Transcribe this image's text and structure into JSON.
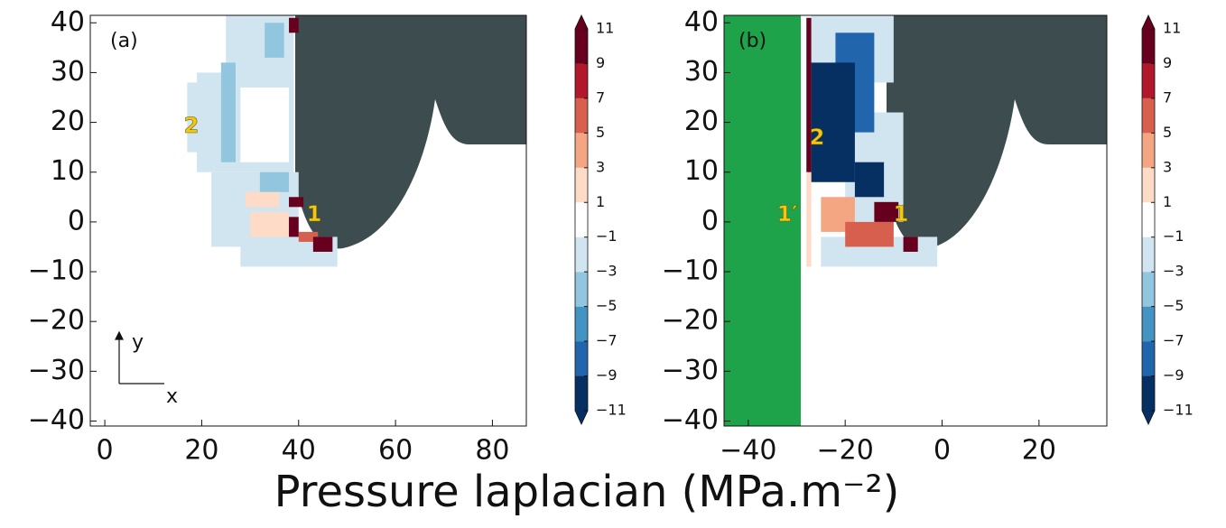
{
  "title": "Pressure laplacian (MPa.m⁻²)",
  "colorbar": {
    "ticks": [
      {
        "value": -11,
        "label": "−11"
      },
      {
        "value": -9,
        "label": "−9"
      },
      {
        "value": -7,
        "label": "−7"
      },
      {
        "value": -5,
        "label": "−5"
      },
      {
        "value": -3,
        "label": "−3"
      },
      {
        "value": -1,
        "label": "−1"
      },
      1,
      3,
      5,
      7,
      9,
      11
    ],
    "colors": [
      "#053061",
      "#2166ac",
      "#4393c3",
      "#92c5de",
      "#d1e5f0",
      "#ffffff",
      "#fddbc7",
      "#f4a582",
      "#d6604d",
      "#b2182b",
      "#67001f"
    ],
    "extend_colors": [
      "#053061",
      "#67001f"
    ]
  },
  "chart_data": [
    {
      "type": "heatmap",
      "label": "(a)",
      "xlim": [
        -3,
        87
      ],
      "ylim": [
        -41,
        41.5
      ],
      "xticks": [
        0,
        20,
        40,
        60,
        80
      ],
      "yticks": [
        {
          "value": -40,
          "label": "−40"
        },
        {
          "value": -30,
          "label": "−30"
        },
        {
          "value": -20,
          "label": "−20"
        },
        {
          "value": -10,
          "label": "−10"
        },
        0,
        10,
        20,
        30,
        40
      ],
      "annotations": [
        "2",
        "1"
      ],
      "axis_arrows": [
        "y",
        "x"
      ],
      "cells": [
        {
          "x0": 25,
          "x1": 39,
          "y0": 28,
          "y1": 42,
          "value": -2
        },
        {
          "x0": 19,
          "x1": 39,
          "y0": 10,
          "y1": 30,
          "value": -2
        },
        {
          "x0": 17,
          "x1": 22,
          "y0": 14,
          "y1": 28,
          "value": -2
        },
        {
          "x0": 22,
          "x1": 40,
          "y0": -5,
          "y1": 10,
          "value": -2
        },
        {
          "x0": 28,
          "x1": 48,
          "y0": -9,
          "y1": -3,
          "value": -2
        },
        {
          "x0": 28,
          "x1": 38,
          "y0": 12,
          "y1": 27,
          "value": 0
        },
        {
          "x0": 24,
          "x1": 27,
          "y0": 12,
          "y1": 32,
          "value": -4
        },
        {
          "x0": 33,
          "x1": 37,
          "y0": 33,
          "y1": 40,
          "value": -4
        },
        {
          "x0": 32,
          "x1": 38,
          "y0": 6,
          "y1": 10,
          "value": -4
        },
        {
          "x0": 29,
          "x1": 36,
          "y0": 3,
          "y1": 6,
          "value": 2
        },
        {
          "x0": 30,
          "x1": 38,
          "y0": -3,
          "y1": 2,
          "value": 2
        },
        {
          "x0": 40,
          "x1": 44,
          "y0": -4,
          "y1": -2,
          "value": 6
        },
        {
          "x0": 38,
          "x1": 40,
          "y0": 38,
          "y1": 41,
          "value": 10
        },
        {
          "x0": 38,
          "x1": 41,
          "y0": 3,
          "y1": 5,
          "value": 10
        },
        {
          "x0": 38,
          "x1": 40,
          "y0": -3,
          "y1": 1,
          "value": 10
        },
        {
          "x0": 43,
          "x1": 47,
          "y0": -6,
          "y1": -3,
          "value": 10
        }
      ]
    },
    {
      "type": "heatmap",
      "label": "(b)",
      "xlim": [
        -45,
        34
      ],
      "ylim": [
        -41,
        41.5
      ],
      "xticks": [
        {
          "value": -40,
          "label": "−40"
        },
        {
          "value": -20,
          "label": "−20"
        },
        0,
        20
      ],
      "yticks": [
        {
          "value": -40,
          "label": "−40"
        },
        {
          "value": -30,
          "label": "−30"
        },
        {
          "value": -20,
          "label": "−20"
        },
        {
          "value": -10,
          "label": "−10"
        },
        0,
        10,
        20,
        30,
        40
      ],
      "annotations": [
        "2",
        "1′",
        "1"
      ],
      "cells": [
        {
          "x0": -27,
          "x1": -10,
          "y0": 28,
          "y1": 42,
          "value": -2
        },
        {
          "x0": -20,
          "x1": -8,
          "y0": 0,
          "y1": 22,
          "value": -2
        },
        {
          "x0": -25,
          "x1": -1,
          "y0": -9,
          "y1": -3,
          "value": -2
        },
        {
          "x0": -22,
          "x1": -14,
          "y0": 18,
          "y1": 38,
          "value": -8
        },
        {
          "x0": -27,
          "x1": -18,
          "y0": 8,
          "y1": 32,
          "value": -10
        },
        {
          "x0": -18,
          "x1": -12,
          "y0": 5,
          "y1": 12,
          "value": -10
        },
        {
          "x0": -28,
          "x1": -27,
          "y0": -9,
          "y1": 10,
          "value": 2
        },
        {
          "x0": -25,
          "x1": -18,
          "y0": -2,
          "y1": 5,
          "value": 4
        },
        {
          "x0": -20,
          "x1": -10,
          "y0": -5,
          "y1": 0,
          "value": 6
        },
        {
          "x0": -28,
          "x1": -27,
          "y0": 10,
          "y1": 41,
          "value": 10
        },
        {
          "x0": -14,
          "x1": -9,
          "y0": 0,
          "y1": 4,
          "value": 10
        },
        {
          "x0": -8,
          "x1": -5,
          "y0": -6,
          "y1": -3,
          "value": 10
        }
      ]
    }
  ]
}
